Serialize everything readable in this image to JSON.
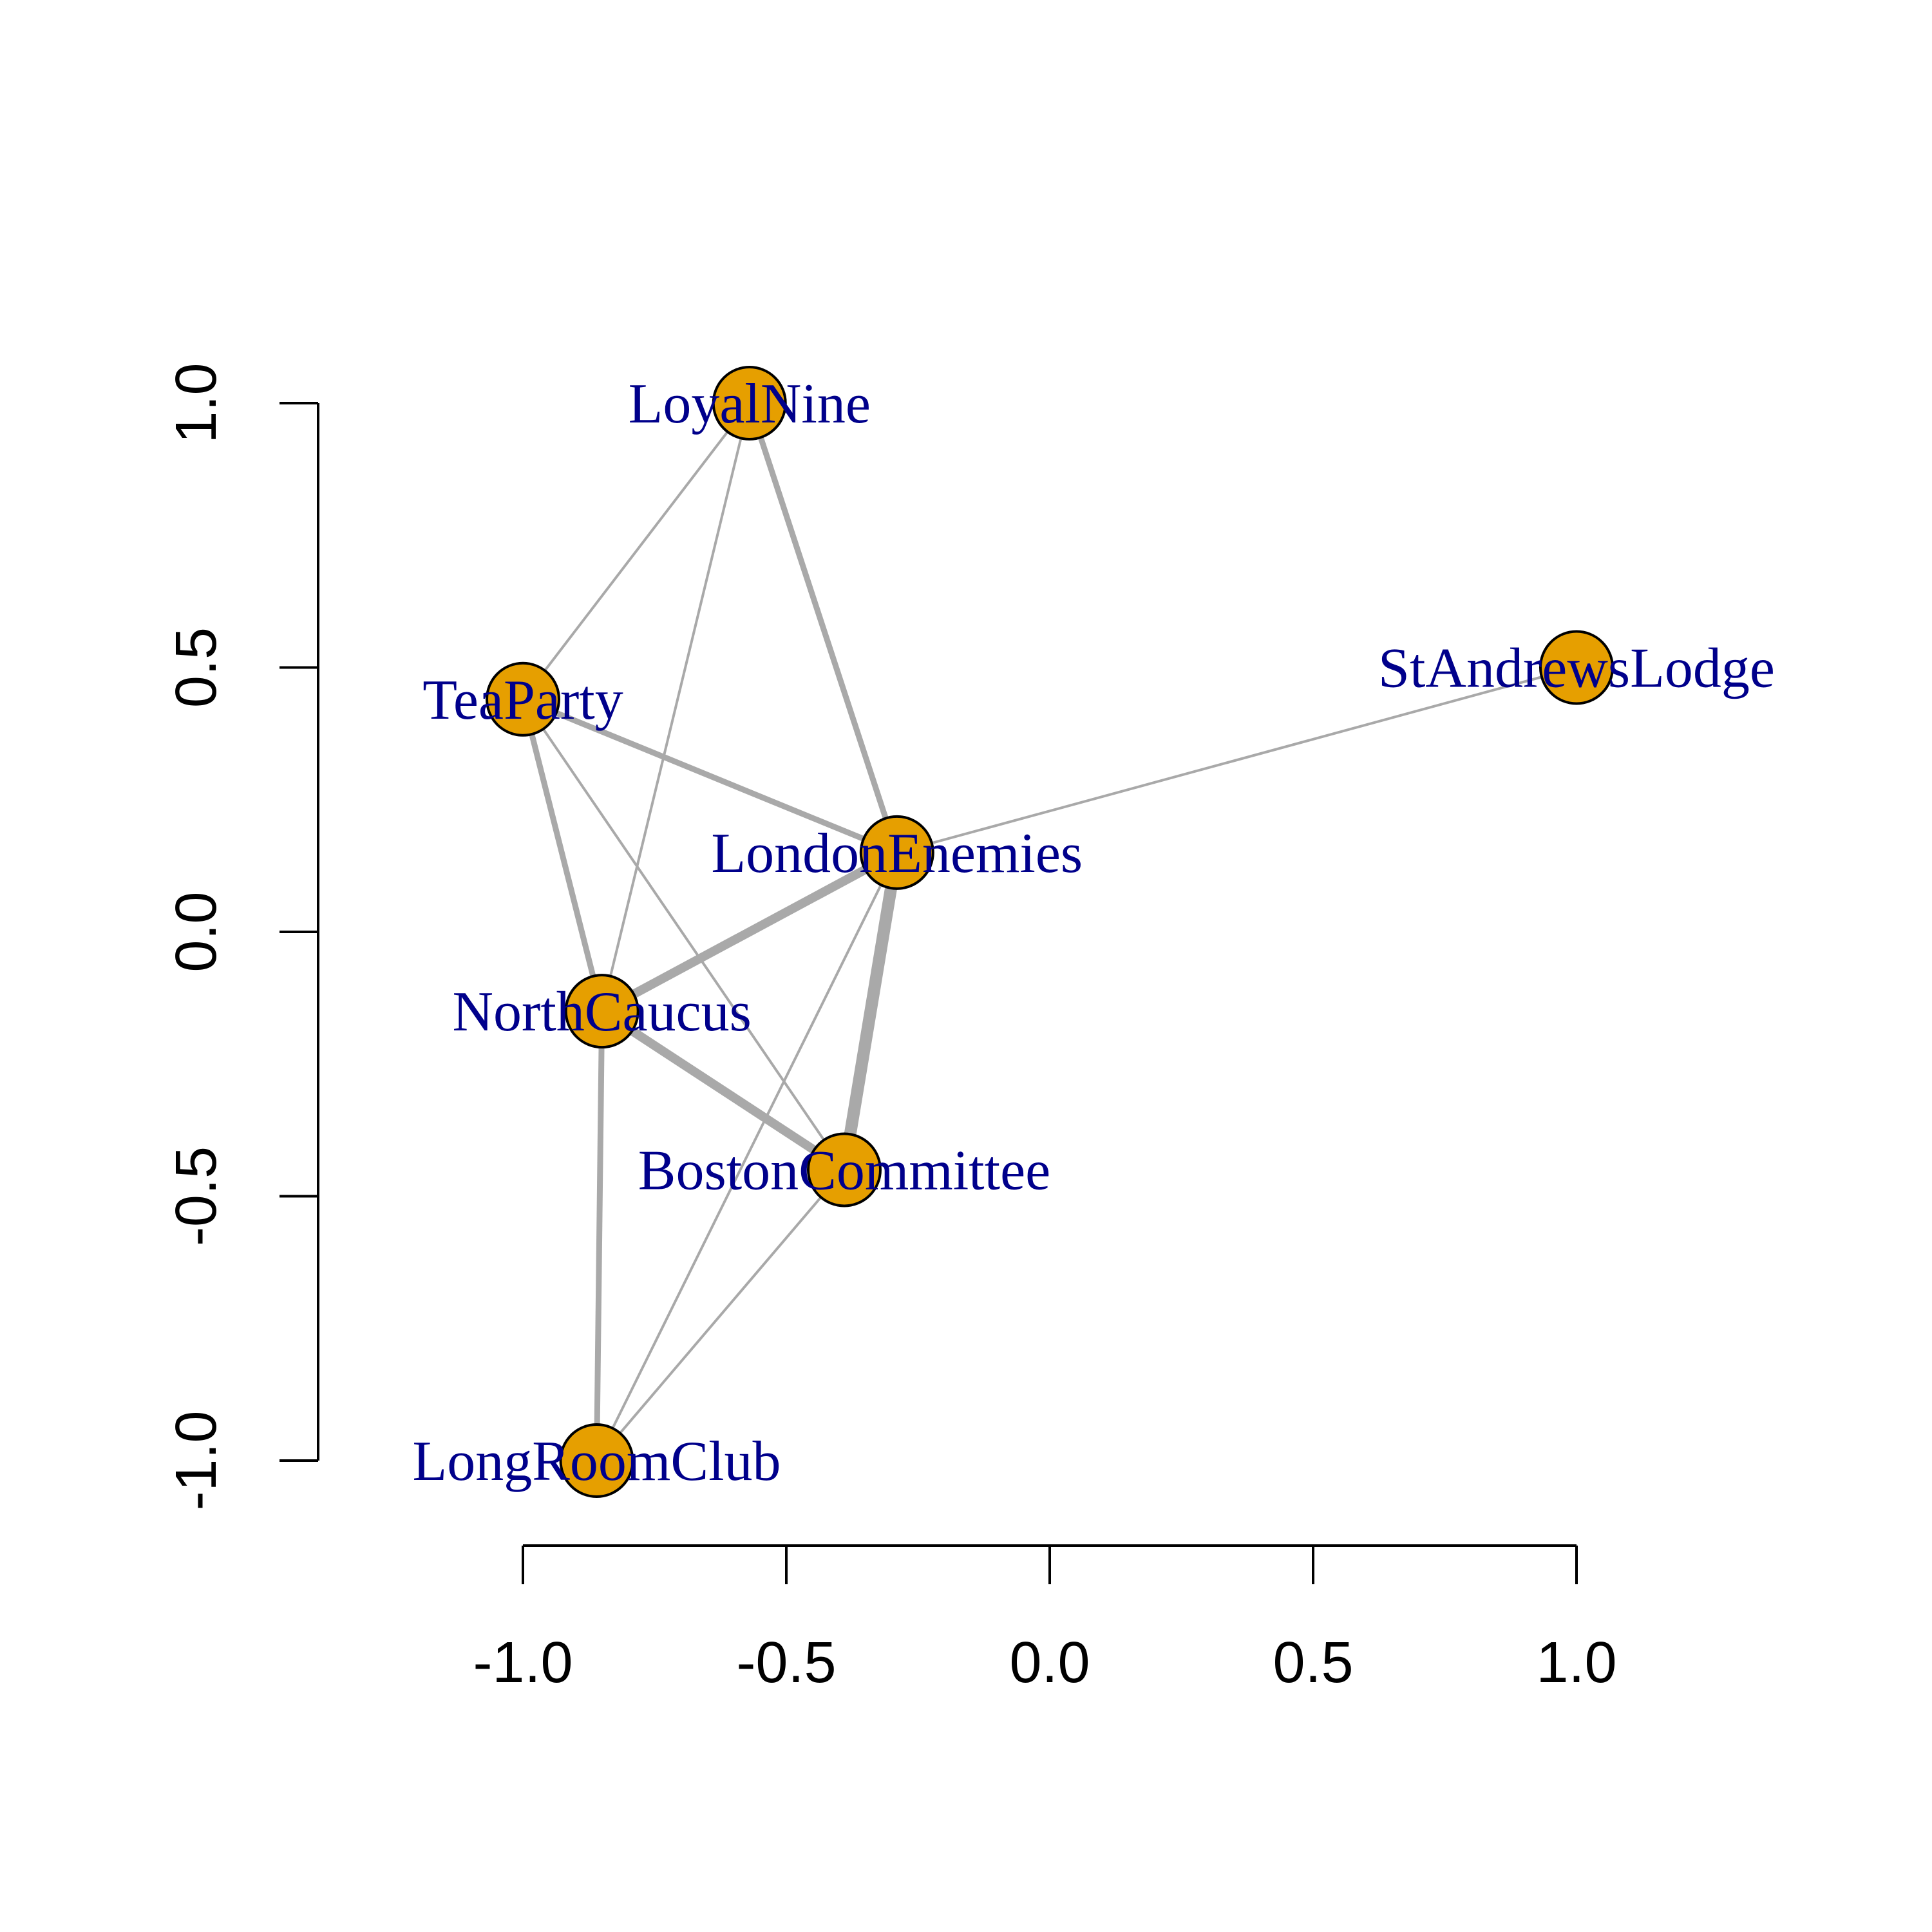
{
  "chart_data": {
    "type": "network",
    "title": "",
    "xlabel": "",
    "ylabel": "",
    "xlim": [
      -1.0,
      1.0
    ],
    "ylim": [
      -1.0,
      1.0
    ],
    "x_ticks": [
      "-1.0",
      "-0.5",
      "0.0",
      "0.5",
      "1.0"
    ],
    "y_ticks": [
      "-1.0",
      "-0.5",
      "0.0",
      "0.5",
      "1.0"
    ],
    "node_color": "#E69F00",
    "node_border_color": "#000000",
    "label_color": "#00008B",
    "edge_color": "#A9A9A9",
    "nodes": [
      {
        "id": "LoyalNine",
        "label": "LoyalNine",
        "x": -0.57,
        "y": 1.0
      },
      {
        "id": "TeaParty",
        "label": "TeaParty",
        "x": -1.0,
        "y": 0.44
      },
      {
        "id": "StAndrewsLodge",
        "label": "StAndrewsLodge",
        "x": 1.0,
        "y": 0.5
      },
      {
        "id": "LondonEnemies",
        "label": "LondonEnemies",
        "x": -0.29,
        "y": 0.15
      },
      {
        "id": "NorthCaucus",
        "label": "NorthCaucus",
        "x": -0.85,
        "y": -0.15
      },
      {
        "id": "BostonCommittee",
        "label": "BostonCommittee",
        "x": -0.39,
        "y": -0.45
      },
      {
        "id": "LongRoomClub",
        "label": "LongRoomClub",
        "x": -0.86,
        "y": -1.0
      }
    ],
    "edges": [
      {
        "source": "LoyalNine",
        "target": "TeaParty",
        "weight": 1
      },
      {
        "source": "LoyalNine",
        "target": "NorthCaucus",
        "weight": 1
      },
      {
        "source": "LoyalNine",
        "target": "LondonEnemies",
        "weight": 2
      },
      {
        "source": "TeaParty",
        "target": "LondonEnemies",
        "weight": 2
      },
      {
        "source": "TeaParty",
        "target": "NorthCaucus",
        "weight": 2
      },
      {
        "source": "TeaParty",
        "target": "BostonCommittee",
        "weight": 1
      },
      {
        "source": "StAndrewsLodge",
        "target": "LondonEnemies",
        "weight": 1
      },
      {
        "source": "LondonEnemies",
        "target": "NorthCaucus",
        "weight": 3
      },
      {
        "source": "LondonEnemies",
        "target": "BostonCommittee",
        "weight": 4
      },
      {
        "source": "LondonEnemies",
        "target": "LongRoomClub",
        "weight": 1
      },
      {
        "source": "NorthCaucus",
        "target": "BostonCommittee",
        "weight": 3
      },
      {
        "source": "NorthCaucus",
        "target": "LongRoomClub",
        "weight": 2
      },
      {
        "source": "BostonCommittee",
        "target": "LongRoomClub",
        "weight": 1
      }
    ]
  }
}
